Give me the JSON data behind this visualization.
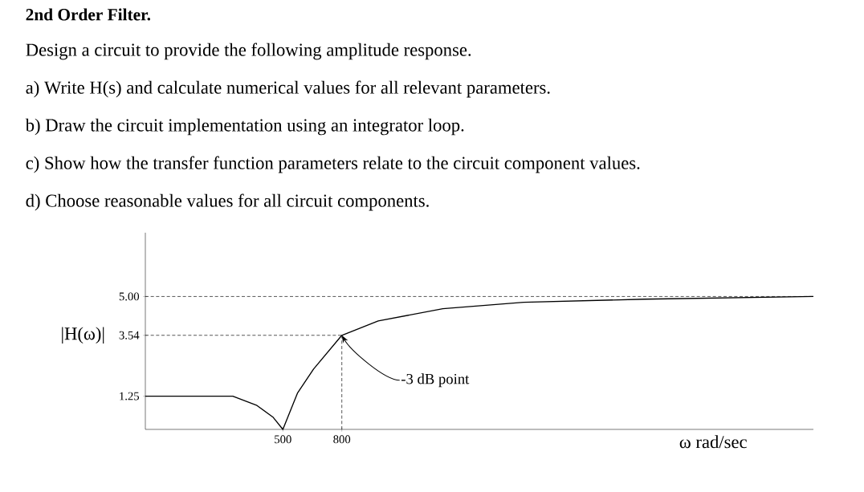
{
  "chart_data": {
    "type": "line",
    "title": "2nd Order Filter.",
    "subtitle": "Design a circuit to provide the following amplitude response.",
    "annotations": [
      "a) Write H(s) and calculate numerical values for all relevant parameters.",
      "b) Draw the circuit implementation using an integrator loop.",
      "c) Show how the transfer function parameters relate to the circuit component values.",
      "d) Choose reasonable values for all circuit components.",
      {
        "text": "-3 dB point",
        "x": 800,
        "y": 3.54
      }
    ],
    "xlabel": "ω rad/sec",
    "ylabel": "|H(ω)|",
    "x": [
      -200,
      245,
      368,
      451,
      500,
      574,
      656,
      800,
      985,
      1314,
      1725,
      2341,
      3200
    ],
    "values": [
      1.25,
      1.25,
      0.9,
      0.45,
      0,
      1.36,
      2.27,
      3.54,
      4.08,
      4.54,
      4.78,
      4.9,
      5.0
    ],
    "color": "#000000",
    "marker": "none",
    "line_style": "solid",
    "xlim": [
      -200,
      3200
    ],
    "ylim": [
      0,
      7.4
    ],
    "xticks": [
      500,
      800
    ],
    "yticks": [
      1.25,
      3.54,
      {
        "value": 5,
        "label": "5.00"
      }
    ],
    "ref_lines": [
      {
        "axis": "y",
        "value": 5,
        "color": "#000000",
        "line_style": "dashed"
      },
      {
        "axis": "y",
        "value": 3.54,
        "color": "#000000",
        "line_style": "dashed"
      },
      {
        "axis": "x",
        "value": 800,
        "color": "#000000",
        "line_style": "dashed"
      }
    ]
  }
}
